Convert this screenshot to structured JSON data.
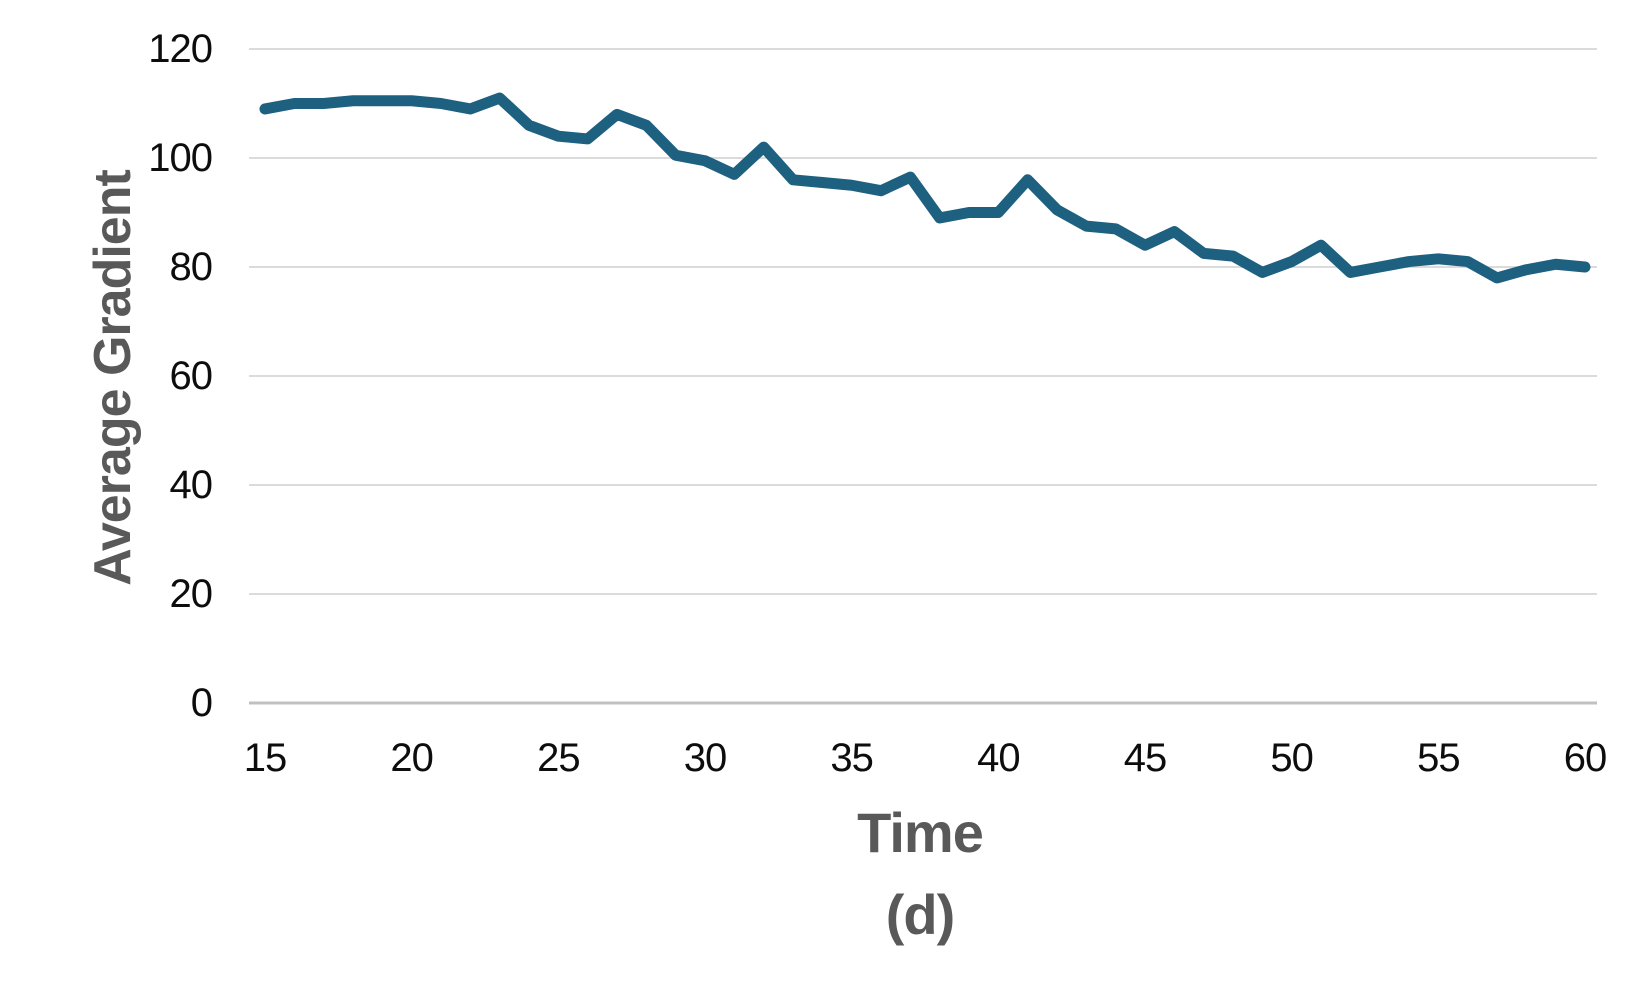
{
  "chart_data": {
    "type": "line",
    "title": "",
    "ylabel": "Average Gradient",
    "xlabel": "Time",
    "xlabel_unit": "(d)",
    "legend": "none",
    "grid": "horizontal",
    "xlim": [
      15,
      60
    ],
    "ylim": [
      0,
      120
    ],
    "x_ticks": [
      15,
      20,
      25,
      30,
      35,
      40,
      45,
      50,
      55,
      60
    ],
    "y_ticks": [
      0,
      20,
      40,
      60,
      80,
      100,
      120
    ],
    "line_color": "#1D6080",
    "gridline_color": "#DBDBDB",
    "axis_line_color": "#C0C0C0",
    "tick_label_color": "#0d0d0d",
    "title_color": "#595959",
    "x": [
      15,
      16,
      17,
      18,
      19,
      20,
      21,
      22,
      23,
      24,
      25,
      26,
      27,
      28,
      29,
      30,
      31,
      32,
      33,
      34,
      35,
      36,
      37,
      38,
      39,
      40,
      41,
      42,
      43,
      44,
      45,
      46,
      47,
      48,
      49,
      50,
      51,
      52,
      53,
      54,
      55,
      56,
      57,
      58,
      59,
      60
    ],
    "values": [
      109,
      110,
      110,
      110.5,
      110.5,
      110.5,
      110,
      109,
      111,
      106,
      104,
      103.5,
      108,
      106,
      100.5,
      99.5,
      97,
      102,
      96,
      95.5,
      95,
      94,
      96.5,
      89,
      90,
      90,
      96,
      90.5,
      87.5,
      87,
      84,
      86.5,
      82.5,
      82,
      79,
      81,
      84,
      79,
      80,
      81,
      81.5,
      81,
      78,
      79.5,
      80.5,
      80
    ]
  }
}
